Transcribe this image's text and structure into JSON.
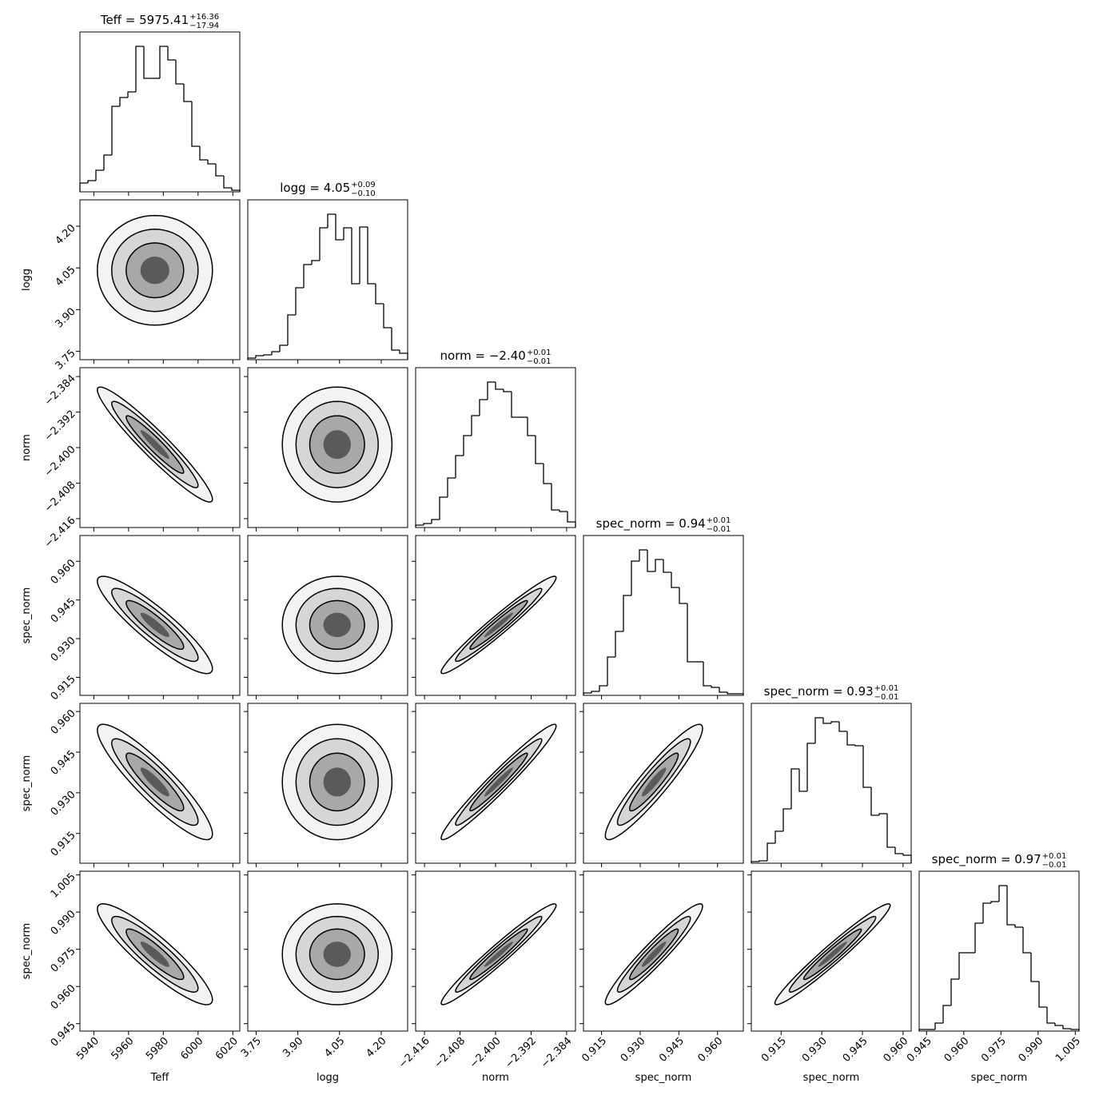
{
  "chart_data": {
    "type": "corner",
    "color": "#000000",
    "hist_ylim": [
      0,
      200
    ],
    "parameters": [
      {
        "label": "Teff",
        "title": "Teff = 5975.41",
        "title_upper": "+16.36",
        "title_lower": "−17.94",
        "lim": [
          5932,
          6024
        ],
        "ticks": [
          5940,
          5960,
          5980,
          6000,
          6020
        ],
        "bins": [
          5932,
          5936.6,
          5941.2,
          5945.8,
          5950.4,
          5955,
          5959.6,
          5964.2,
          5968.8,
          5973.4,
          5978,
          5982.6,
          5987.2,
          5991.8,
          5996.4,
          6001,
          6005.6,
          6010.2,
          6014.8,
          6019.4,
          6024
        ],
        "counts": [
          11,
          14,
          27,
          46,
          107,
          118,
          125,
          182,
          142,
          142,
          182,
          165,
          135,
          113,
          57,
          40,
          35,
          20,
          5,
          2
        ]
      },
      {
        "label": "logg",
        "title": "logg = 4.05",
        "title_upper": "+0.09",
        "title_lower": "−0.10",
        "lim": [
          3.72,
          4.295
        ],
        "ticks": [
          3.75,
          {
            "value": 3.9,
            "label": "3.90"
          },
          4.05,
          {
            "value": 4.2,
            "label": "4.20"
          }
        ],
        "bins": [
          3.72,
          3.74875,
          3.7775,
          3.80625,
          3.835,
          3.86375,
          3.8925,
          3.92125,
          3.95,
          3.97875,
          4.0075,
          4.03625,
          4.065,
          4.09375,
          4.1225,
          4.15125,
          4.18,
          4.20875,
          4.2375,
          4.26625,
          4.295
        ],
        "counts": [
          2,
          5,
          6,
          10,
          18,
          56,
          90,
          119,
          124,
          165,
          182,
          150,
          165,
          95,
          166,
          95,
          70,
          40,
          12,
          8
        ]
      },
      {
        "label": "norm",
        "title": "norm = −2.40",
        "title_upper": "+0.01",
        "title_lower": "−0.01",
        "lim": [
          -2.418,
          -2.382
        ],
        "ticks": [
          {
            "value": -2.416,
            "label": "−2.416"
          },
          {
            "value": -2.408,
            "label": "−2.408"
          },
          {
            "value": -2.4,
            "label": "−2.400"
          },
          {
            "value": -2.392,
            "label": "−2.392"
          },
          {
            "value": -2.384,
            "label": "−2.384"
          }
        ],
        "bins": [
          -2.418,
          -2.4162,
          -2.4144,
          -2.4126,
          -2.4108,
          -2.409,
          -2.4072,
          -2.4054,
          -2.4036,
          -2.4018,
          -2.4,
          -2.3982,
          -2.3964,
          -2.3946,
          -2.3928,
          -2.391,
          -2.3892,
          -2.3874,
          -2.3856,
          -2.3838,
          -2.382
        ],
        "counts": [
          3,
          5,
          10,
          38,
          62,
          90,
          115,
          140,
          160,
          182,
          173,
          170,
          138,
          138,
          115,
          80,
          55,
          22,
          20,
          7
        ]
      },
      {
        "label": "spec_norm",
        "title": "spec_norm = 0.94",
        "title_upper": "+0.01",
        "title_lower": "−0.01",
        "lim": [
          0.908,
          0.97
        ],
        "ticks": [
          0.915,
          {
            "value": 0.93,
            "label": "0.930"
          },
          0.945,
          {
            "value": 0.96,
            "label": "0.960"
          }
        ],
        "bins": [
          0.908,
          0.9111,
          0.9142,
          0.9173,
          0.9204,
          0.9235,
          0.9266,
          0.9297,
          0.9328,
          0.9359,
          0.939,
          0.9421,
          0.9452,
          0.9483,
          0.9514,
          0.9545,
          0.9576,
          0.9607,
          0.9638,
          0.9669,
          0.97
        ],
        "counts": [
          3,
          5,
          12,
          48,
          80,
          125,
          168,
          182,
          155,
          170,
          154,
          135,
          115,
          42,
          42,
          12,
          10,
          4,
          2,
          2
        ]
      },
      {
        "label": "spec_norm",
        "title": "spec_norm = 0.93",
        "title_upper": "+0.01",
        "title_lower": "−0.01",
        "lim": [
          0.904,
          0.963
        ],
        "ticks": [
          0.915,
          {
            "value": 0.93,
            "label": "0.930"
          },
          0.945,
          {
            "value": 0.96,
            "label": "0.960"
          }
        ],
        "bins": [
          0.904,
          0.90695,
          0.9099,
          0.91285,
          0.9158,
          0.91875,
          0.9217,
          0.92465,
          0.9276,
          0.93055,
          0.9335,
          0.93645,
          0.9394,
          0.94235,
          0.9453,
          0.94825,
          0.9512,
          0.95415,
          0.9571,
          0.96005,
          0.963
        ],
        "counts": [
          2,
          3,
          25,
          40,
          68,
          118,
          90,
          150,
          182,
          175,
          177,
          165,
          148,
          147,
          95,
          60,
          62,
          20,
          12,
          10
        ]
      },
      {
        "label": "spec_norm",
        "title": "spec_norm = 0.97",
        "title_upper": "+0.01",
        "title_lower": "−0.01",
        "lim": [
          0.942,
          1.0065
        ],
        "ticks": [
          0.945,
          {
            "value": 0.96,
            "label": "0.960"
          },
          0.975,
          {
            "value": 0.99,
            "label": "0.990"
          },
          1.005
        ],
        "bins": [
          0.942,
          0.945225,
          0.94845,
          0.951675,
          0.9549,
          0.958125,
          0.96135,
          0.964575,
          0.9678,
          0.971025,
          0.97425,
          0.977475,
          0.9807,
          0.983925,
          0.98715,
          0.990375,
          0.9936,
          0.996825,
          1.00005,
          1.003275,
          1.0065
        ],
        "counts": [
          2,
          2,
          10,
          32,
          65,
          98,
          98,
          135,
          160,
          162,
          182,
          133,
          130,
          98,
          62,
          30,
          10,
          7,
          3,
          2
        ]
      }
    ],
    "correlations": [
      [
        0.0
      ],
      [
        -0.95,
        0.0
      ],
      [
        -0.9,
        0.0,
        0.97
      ],
      [
        -0.9,
        0.0,
        0.97,
        0.93
      ],
      [
        -0.9,
        0.0,
        0.97,
        0.95,
        0.97
      ]
    ]
  }
}
